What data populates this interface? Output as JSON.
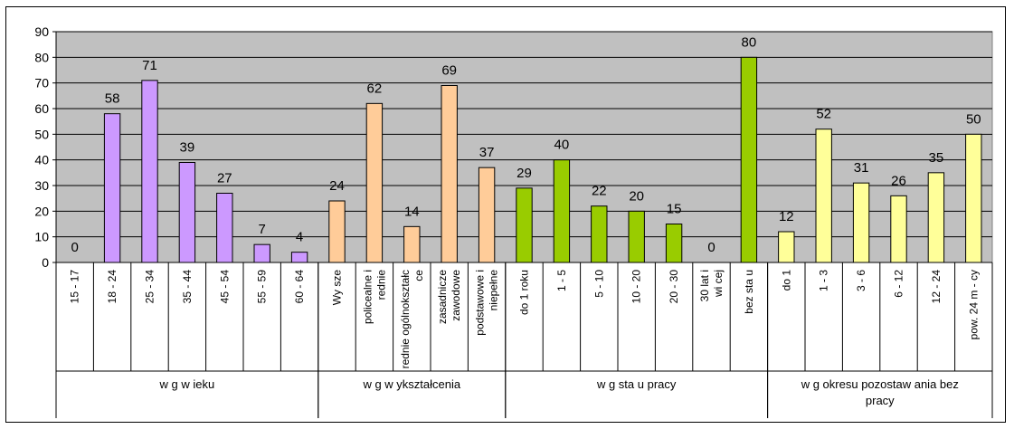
{
  "chart_data": {
    "type": "bar",
    "title": "",
    "xlabel": "",
    "ylabel": "",
    "ylim": [
      0,
      90
    ],
    "yticks": [
      0,
      10,
      20,
      30,
      40,
      50,
      60,
      70,
      80,
      90
    ],
    "grid": true,
    "legend": "none",
    "plot_background": "#c0c0c0",
    "groups": [
      {
        "label": "w g w ieku",
        "color": "#cc99ff",
        "categories": [
          "15 - 17",
          "18 - 24",
          "25 - 34",
          "35 - 44",
          "45 - 54",
          "55 - 59",
          "60 - 64"
        ],
        "values": [
          0,
          58,
          71,
          39,
          27,
          7,
          4
        ]
      },
      {
        "label": "w g w ykształcenia",
        "color": "#ffcc99",
        "categories": [
          "Wy sze",
          "policealne i rednie",
          "rednie ogólnokształc ce",
          "zasadnicze zawodowe",
          "podstawowe i niepełne"
        ],
        "values": [
          24,
          62,
          14,
          69,
          37
        ]
      },
      {
        "label": "w g sta u pracy",
        "color": "#99cc00",
        "categories": [
          "do 1 roku",
          "1 - 5",
          "5 - 10",
          "10 - 20",
          "20 - 30",
          "30 lat i wi cej",
          "bez sta u"
        ],
        "values": [
          29,
          40,
          22,
          20,
          15,
          0,
          80
        ]
      },
      {
        "label": "w g okresu pozostaw ania bez pracy",
        "color": "#ffff99",
        "categories": [
          "do 1",
          "1 - 3",
          "3 - 6",
          "6 - 12",
          "12 - 24",
          "pow. 24 m - cy"
        ],
        "values": [
          12,
          52,
          31,
          26,
          35,
          50
        ]
      }
    ]
  }
}
